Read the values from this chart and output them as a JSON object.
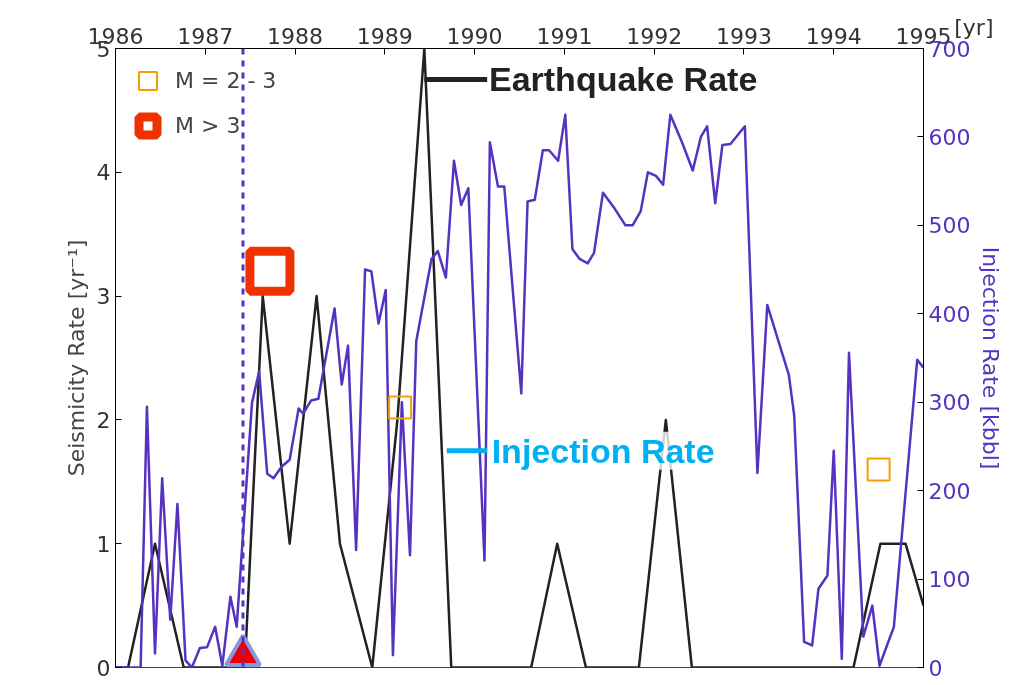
{
  "chart_data": {
    "type": "line",
    "xlabel": "[yr]",
    "ylabel": "Seismicity Rate [yr⁻¹]",
    "y2label": "Injection Rate [kbbl]",
    "xlim": [
      1986,
      1995
    ],
    "xticks": [
      1986,
      1987,
      1988,
      1989,
      1990,
      1991,
      1992,
      1993,
      1994,
      1995
    ],
    "ylim": [
      0,
      5
    ],
    "yticks": [
      0,
      1,
      2,
      3,
      4,
      5
    ],
    "y2lim": [
      0,
      700
    ],
    "y2ticks": [
      0,
      100,
      200,
      300,
      400,
      500,
      600,
      700
    ],
    "grid": false,
    "legend": "top left",
    "series": [
      {
        "name": "Earthquake Rate",
        "color": "#222222",
        "x": [
          1986.0,
          1986.14,
          1986.44,
          1986.76,
          1987.44,
          1987.64,
          1987.94,
          1988.24,
          1988.5,
          1988.86,
          1989.14,
          1989.44,
          1989.74,
          1990.63,
          1990.92,
          1991.24,
          1991.83,
          1992.13,
          1992.42,
          1994.22,
          1994.52,
          1994.8,
          1995.0
        ],
        "values": [
          0,
          0,
          1,
          0,
          0,
          3,
          1,
          3,
          1,
          0,
          2,
          5,
          0,
          0,
          1,
          0,
          0,
          2,
          0,
          0,
          1,
          1,
          0.5
        ]
      },
      {
        "name": "Injection Rate",
        "color": "#5533c0",
        "axis": "y2",
        "x": [
          1986.0,
          1986.28,
          1986.35,
          1986.44,
          1986.52,
          1986.61,
          1986.69,
          1986.78,
          1986.85,
          1986.94,
          1987.02,
          1987.11,
          1987.19,
          1987.28,
          1987.35,
          1987.52,
          1987.6,
          1987.69,
          1987.76,
          1987.85,
          1987.94,
          1988.04,
          1988.09,
          1988.18,
          1988.26,
          1988.44,
          1988.52,
          1988.59,
          1988.68,
          1988.78,
          1988.85,
          1988.93,
          1989.01,
          1989.09,
          1989.19,
          1989.28,
          1989.35,
          1989.52,
          1989.59,
          1989.68,
          1989.77,
          1989.85,
          1989.93,
          1990.11,
          1990.17,
          1990.26,
          1990.33,
          1990.52,
          1990.59,
          1990.67,
          1990.76,
          1990.83,
          1990.93,
          1991.01,
          1991.09,
          1991.17,
          1991.26,
          1991.33,
          1991.43,
          1991.56,
          1991.68,
          1991.76,
          1991.85,
          1991.93,
          1992.02,
          1992.1,
          1992.18,
          1992.31,
          1992.43,
          1992.52,
          1992.59,
          1992.68,
          1992.76,
          1992.85,
          1993.01,
          1993.15,
          1993.26,
          1993.5,
          1993.56,
          1993.67,
          1993.76,
          1993.83,
          1993.93,
          1994.0,
          1994.09,
          1994.17,
          1994.33,
          1994.43,
          1994.51,
          1994.67,
          1994.93,
          1995.0
        ],
        "values": [
          0,
          0,
          295,
          16,
          214,
          54,
          185,
          8,
          0,
          22,
          23,
          46,
          2,
          80,
          46,
          299,
          335,
          219,
          214,
          227,
          235,
          293,
          287,
          302,
          304,
          406,
          320,
          364,
          133,
          450,
          448,
          389,
          427,
          14,
          300,
          127,
          369,
          462,
          471,
          441,
          573,
          523,
          542,
          121,
          594,
          544,
          544,
          310,
          527,
          529,
          585,
          585,
          573,
          625,
          473,
          462,
          457,
          469,
          537,
          519,
          500,
          500,
          516,
          560,
          556,
          546,
          625,
          594,
          562,
          600,
          612,
          525,
          591,
          592,
          612,
          220,
          410,
          331,
          285,
          29,
          25,
          89,
          104,
          245,
          10,
          356,
          35,
          70,
          2,
          46,
          348,
          339
        ]
      },
      {
        "name": "M = 2 - 3",
        "type": "scatter",
        "marker": "square",
        "color": "#f5a000",
        "x": [
          1989.17,
          1994.5
        ],
        "values": [
          2.1,
          1.6
        ]
      },
      {
        "name": "M > 3",
        "type": "scatter",
        "marker": "square",
        "color": "#ee3300",
        "x": [
          1987.72
        ],
        "values": [
          3.2
        ]
      },
      {
        "type": "scatter",
        "marker": "triangle",
        "color": "#ee0000",
        "x": [
          1987.42
        ],
        "values": [
          0.1
        ]
      }
    ],
    "ref_lines": [
      {
        "axis": "x",
        "value": 1987.42,
        "color": "#5533c0",
        "line_style": "dashed"
      }
    ]
  }
}
